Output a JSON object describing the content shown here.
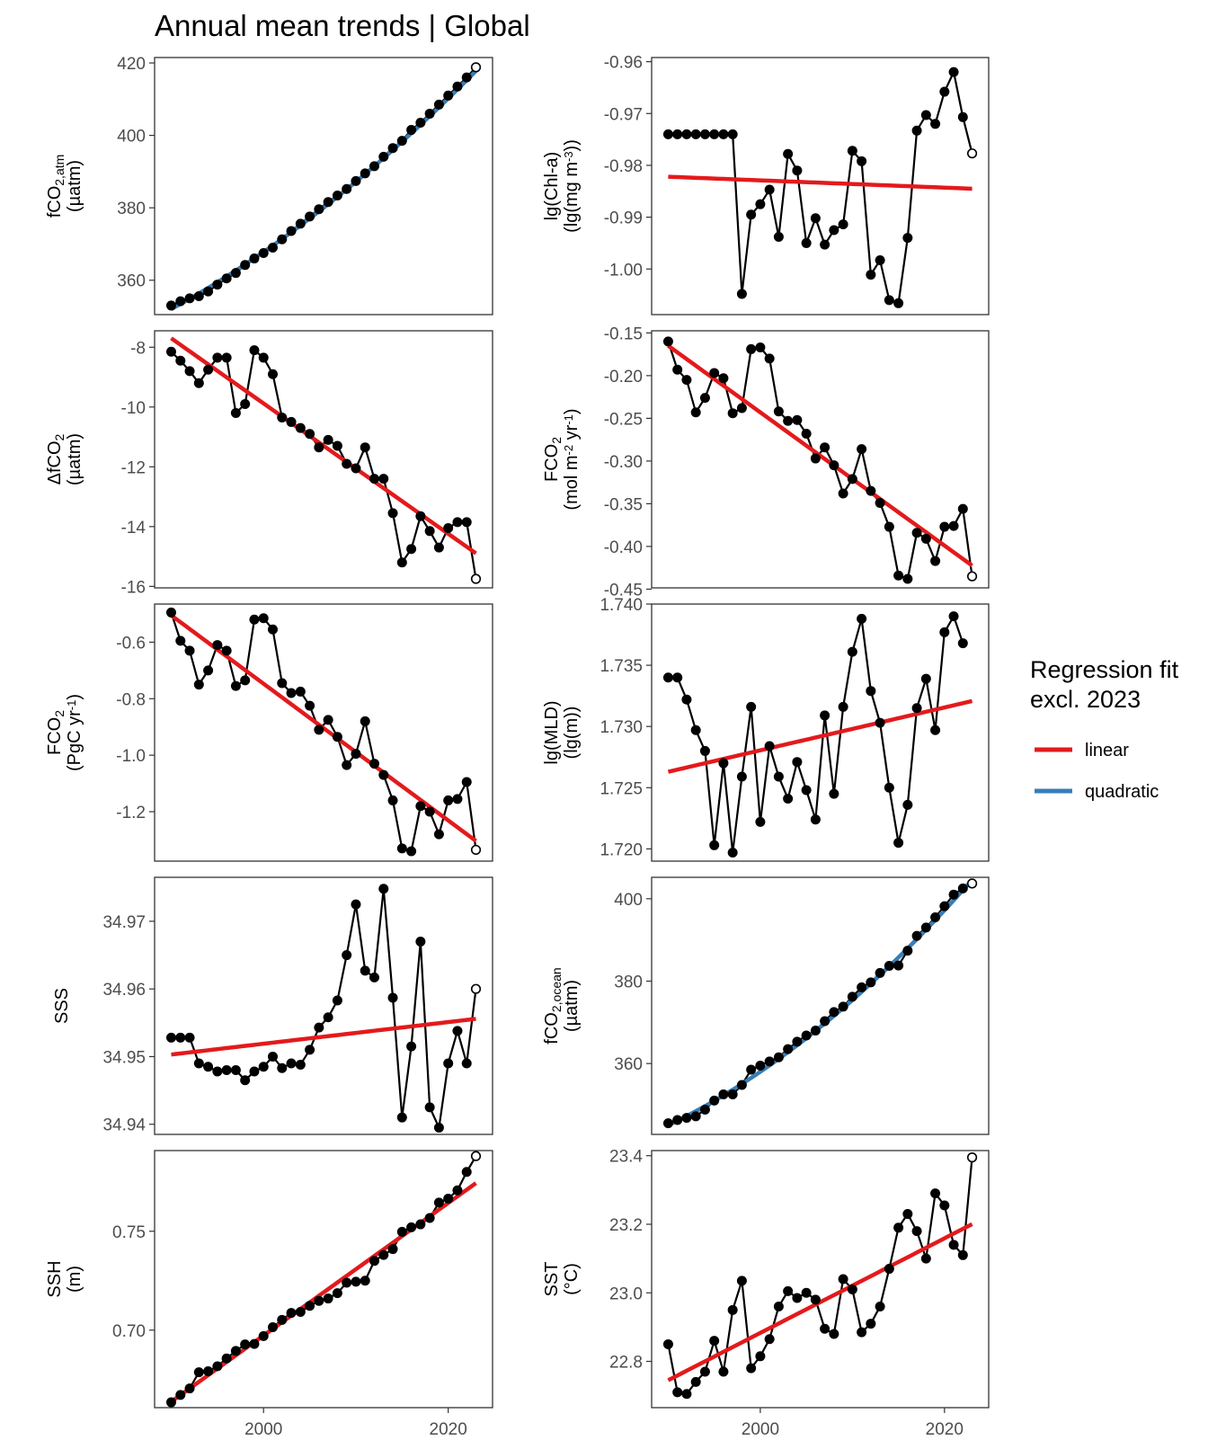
{
  "figure": {
    "title": "Annual mean trends | Global"
  },
  "colors": {
    "linear": "#e31a1c",
    "quadratic": "#377eb8",
    "points": "#000000",
    "frame": "#333333"
  },
  "legend": {
    "title_line1": "Regression fit",
    "title_line2": "excl. 2023",
    "items": [
      {
        "key": "linear",
        "label": "linear"
      },
      {
        "key": "quadratic",
        "label": "quadratic"
      }
    ]
  },
  "chart_data": [
    {
      "type": "line",
      "id": "fco2atm",
      "ylabel": [
        [
          {
            "t": "fCO"
          },
          {
            "t": "2,atm",
            "s": "sub"
          }
        ],
        [
          {
            "t": "(µatm)"
          }
        ]
      ],
      "xlim": [
        1988.2,
        2024.8
      ],
      "ylim": [
        350.5,
        421.5
      ],
      "yticks": [
        360,
        380,
        400,
        420
      ],
      "ytick_labels": [
        "360",
        "380",
        "400",
        "420"
      ],
      "xticks": [],
      "xtick_labels": [],
      "x": [
        1990,
        1991,
        1992,
        1993,
        1994,
        1995,
        1996,
        1997,
        1998,
        1999,
        2000,
        2001,
        2002,
        2003,
        2004,
        2005,
        2006,
        2007,
        2008,
        2009,
        2010,
        2011,
        2012,
        2013,
        2014,
        2015,
        2016,
        2017,
        2018,
        2019,
        2020,
        2021,
        2022,
        2023
      ],
      "values": [
        353.0,
        354.2,
        355.0,
        355.6,
        356.9,
        358.8,
        360.5,
        362.0,
        364.2,
        366.0,
        367.5,
        369.0,
        371.3,
        373.6,
        375.6,
        377.6,
        379.6,
        381.6,
        383.4,
        385.2,
        387.4,
        389.5,
        391.5,
        394.1,
        396.5,
        398.5,
        401.5,
        403.5,
        406.0,
        408.5,
        411.0,
        413.5,
        416.0,
        418.8
      ],
      "fits": {
        "quadratic": {
          "coef": [
            352.0,
            1.4,
            0.018
          ],
          "x0": 1990,
          "range": [
            1990,
            2023
          ]
        }
      }
    },
    {
      "type": "line",
      "id": "chla",
      "ylabel": [
        [
          {
            "t": "lg(Chl-a)"
          }
        ],
        [
          {
            "t": "(lg(mg m"
          },
          {
            "t": "-3",
            "s": "sup"
          },
          {
            "t": "))"
          }
        ]
      ],
      "xlim": [
        1988.2,
        2024.8
      ],
      "ylim": [
        -1.0088,
        -0.9592
      ],
      "yticks": [
        -1.0,
        -0.99,
        -0.98,
        -0.97,
        -0.96
      ],
      "ytick_labels": [
        "-1.00",
        "-0.99",
        "-0.98",
        "-0.97",
        "-0.96"
      ],
      "xticks": [],
      "xtick_labels": [],
      "x": [
        1990,
        1991,
        1992,
        1993,
        1994,
        1995,
        1996,
        1997,
        1998,
        1999,
        2000,
        2001,
        2002,
        2003,
        2004,
        2005,
        2006,
        2007,
        2008,
        2009,
        2010,
        2011,
        2012,
        2013,
        2014,
        2015,
        2016,
        2017,
        2018,
        2019,
        2020,
        2021,
        2022,
        2023
      ],
      "values": [
        -0.974,
        -0.974,
        -0.974,
        -0.974,
        -0.974,
        -0.974,
        -0.974,
        -0.974,
        -1.0048,
        -0.9895,
        -0.9875,
        -0.9847,
        -0.9938,
        -0.9778,
        -0.981,
        -0.995,
        -0.9902,
        -0.9953,
        -0.9925,
        -0.9914,
        -0.9772,
        -0.9792,
        -1.0011,
        -0.9983,
        -1.006,
        -1.0066,
        -0.994,
        -0.9733,
        -0.9703,
        -0.972,
        -0.9658,
        -0.962,
        -0.9707,
        -0.9777
      ],
      "fits": {
        "linear": {
          "coef": [
            -0.9822,
            -7e-05
          ],
          "x0": 1990,
          "range": [
            1990,
            2023
          ]
        }
      }
    },
    {
      "type": "line",
      "id": "dfco2",
      "ylabel": [
        [
          {
            "t": "ΔfCO"
          },
          {
            "t": "2",
            "s": "sub"
          }
        ],
        [
          {
            "t": "(µatm)"
          }
        ]
      ],
      "xlim": [
        1988.2,
        2024.8
      ],
      "ylim": [
        -16.05,
        -7.45
      ],
      "yticks": [
        -16,
        -14,
        -12,
        -10,
        -8
      ],
      "ytick_labels": [
        "-16",
        "-14",
        "-12",
        "-10",
        "-8"
      ],
      "xticks": [],
      "xtick_labels": [],
      "x": [
        1990,
        1991,
        1992,
        1993,
        1994,
        1995,
        1996,
        1997,
        1998,
        1999,
        2000,
        2001,
        2002,
        2003,
        2004,
        2005,
        2006,
        2007,
        2008,
        2009,
        2010,
        2011,
        2012,
        2013,
        2014,
        2015,
        2016,
        2017,
        2018,
        2019,
        2020,
        2021,
        2022,
        2023
      ],
      "values": [
        -8.15,
        -8.45,
        -8.8,
        -9.2,
        -8.75,
        -8.35,
        -8.35,
        -10.2,
        -9.9,
        -8.1,
        -8.35,
        -8.9,
        -10.35,
        -10.5,
        -10.7,
        -10.9,
        -11.35,
        -11.1,
        -11.3,
        -11.9,
        -12.05,
        -11.35,
        -12.4,
        -12.4,
        -13.55,
        -15.2,
        -14.75,
        -13.65,
        -14.15,
        -14.7,
        -14.05,
        -13.85,
        -13.85,
        -15.75
      ],
      "fits": {
        "linear": {
          "coef": [
            -7.7,
            -0.218
          ],
          "x0": 1990,
          "range": [
            1990,
            2023
          ]
        }
      }
    },
    {
      "type": "line",
      "id": "fco2flux_area",
      "ylabel": [
        [
          {
            "t": "FCO"
          },
          {
            "t": "2",
            "s": "sub"
          }
        ],
        [
          {
            "t": "(mol m"
          },
          {
            "t": "-2",
            "s": "sup"
          },
          {
            "t": " yr"
          },
          {
            "t": "-1",
            "s": "sup"
          },
          {
            "t": ")"
          }
        ]
      ],
      "xlim": [
        1988.2,
        2024.8
      ],
      "ylim": [
        -0.4485,
        -0.1475
      ],
      "yticks": [
        -0.45,
        -0.4,
        -0.35,
        -0.3,
        -0.25,
        -0.2,
        -0.15
      ],
      "ytick_labels": [
        "-0.45",
        "-0.40",
        "-0.35",
        "-0.30",
        "-0.25",
        "-0.20",
        "-0.15"
      ],
      "xticks": [],
      "xtick_labels": [],
      "x": [
        1990,
        1991,
        1992,
        1993,
        1994,
        1995,
        1996,
        1997,
        1998,
        1999,
        2000,
        2001,
        2002,
        2003,
        2004,
        2005,
        2006,
        2007,
        2008,
        2009,
        2010,
        2011,
        2012,
        2013,
        2014,
        2015,
        2016,
        2017,
        2018,
        2019,
        2020,
        2021,
        2022,
        2023
      ],
      "values": [
        -0.16,
        -0.193,
        -0.205,
        -0.243,
        -0.226,
        -0.197,
        -0.203,
        -0.244,
        -0.238,
        -0.169,
        -0.167,
        -0.18,
        -0.242,
        -0.253,
        -0.252,
        -0.268,
        -0.297,
        -0.284,
        -0.305,
        -0.338,
        -0.321,
        -0.286,
        -0.335,
        -0.349,
        -0.377,
        -0.434,
        -0.438,
        -0.384,
        -0.391,
        -0.417,
        -0.377,
        -0.376,
        -0.356,
        -0.435
      ],
      "fits": {
        "linear": {
          "coef": [
            -0.165,
            -0.0078
          ],
          "x0": 1990,
          "range": [
            1990,
            2023
          ]
        }
      }
    },
    {
      "type": "line",
      "id": "fco2flux_global",
      "ylabel": [
        [
          {
            "t": "FCO"
          },
          {
            "t": "2",
            "s": "sub"
          }
        ],
        [
          {
            "t": "(PgC yr"
          },
          {
            "t": "-1",
            "s": "sup"
          },
          {
            "t": ")"
          }
        ]
      ],
      "xlim": [
        1988.2,
        2024.8
      ],
      "ylim": [
        -1.375,
        -0.465
      ],
      "yticks": [
        -1.2,
        -1.0,
        -0.8,
        -0.6
      ],
      "ytick_labels": [
        "-1.2",
        "-1.0",
        "-0.8",
        "-0.6"
      ],
      "xticks": [],
      "xtick_labels": [],
      "x": [
        1990,
        1991,
        1992,
        1993,
        1994,
        1995,
        1996,
        1997,
        1998,
        1999,
        2000,
        2001,
        2002,
        2003,
        2004,
        2005,
        2006,
        2007,
        2008,
        2009,
        2010,
        2011,
        2012,
        2013,
        2014,
        2015,
        2016,
        2017,
        2018,
        2019,
        2020,
        2021,
        2022,
        2023
      ],
      "values": [
        -0.495,
        -0.595,
        -0.63,
        -0.75,
        -0.7,
        -0.61,
        -0.63,
        -0.755,
        -0.735,
        -0.52,
        -0.515,
        -0.555,
        -0.745,
        -0.78,
        -0.775,
        -0.825,
        -0.91,
        -0.875,
        -0.935,
        -1.035,
        -0.995,
        -0.88,
        -1.03,
        -1.07,
        -1.16,
        -1.33,
        -1.34,
        -1.18,
        -1.2,
        -1.28,
        -1.16,
        -1.155,
        -1.095,
        -1.335
      ],
      "fits": {
        "linear": {
          "coef": [
            -0.505,
            -0.0242
          ],
          "x0": 1990,
          "range": [
            1990,
            2023
          ]
        }
      }
    },
    {
      "type": "line",
      "id": "mld",
      "ylabel": [
        [
          {
            "t": "lg(MLD)"
          }
        ],
        [
          {
            "t": "(lg(m))"
          }
        ]
      ],
      "xlim": [
        1988.2,
        2024.8
      ],
      "ylim": [
        1.719,
        1.74
      ],
      "yticks": [
        1.72,
        1.725,
        1.73,
        1.735,
        1.74
      ],
      "ytick_labels": [
        "1.720",
        "1.725",
        "1.730",
        "1.735",
        "1.740"
      ],
      "xticks": [],
      "xtick_labels": [],
      "x": [
        1990,
        1991,
        1992,
        1993,
        1994,
        1995,
        1996,
        1997,
        1998,
        1999,
        2000,
        2001,
        2002,
        2003,
        2004,
        2005,
        2006,
        2007,
        2008,
        2009,
        2010,
        2011,
        2012,
        2013,
        2014,
        2015,
        2016,
        2017,
        2018,
        2019,
        2020,
        2021,
        2022
      ],
      "values": [
        1.734,
        1.734,
        1.7322,
        1.7297,
        1.728,
        1.7203,
        1.727,
        1.7197,
        1.7259,
        1.7316,
        1.7222,
        1.7284,
        1.7259,
        1.7241,
        1.7271,
        1.7248,
        1.7224,
        1.7309,
        1.7245,
        1.7316,
        1.7361,
        1.7388,
        1.7329,
        1.7303,
        1.725,
        1.7205,
        1.7236,
        1.7315,
        1.7339,
        1.7297,
        1.7377,
        1.739,
        1.7368
      ],
      "fits": {
        "linear": {
          "coef": [
            1.7263,
            0.000175
          ],
          "x0": 1990,
          "range": [
            1990,
            2023
          ]
        }
      }
    },
    {
      "type": "line",
      "id": "sss",
      "ylabel": [
        [
          {
            "t": "SSS"
          }
        ]
      ],
      "xlim": [
        1988.2,
        2024.8
      ],
      "ylim": [
        34.9385,
        34.9765
      ],
      "yticks": [
        34.94,
        34.95,
        34.96,
        34.97
      ],
      "ytick_labels": [
        "34.94",
        "34.95",
        "34.96",
        "34.97"
      ],
      "xticks": [],
      "xtick_labels": [],
      "x": [
        1990,
        1991,
        1992,
        1993,
        1994,
        1995,
        1996,
        1997,
        1998,
        1999,
        2000,
        2001,
        2002,
        2003,
        2004,
        2005,
        2006,
        2007,
        2008,
        2009,
        2010,
        2011,
        2012,
        2013,
        2014,
        2015,
        2016,
        2017,
        2018,
        2019,
        2020,
        2021,
        2022,
        2023
      ],
      "values": [
        34.9528,
        34.9528,
        34.9528,
        34.949,
        34.9485,
        34.9478,
        34.948,
        34.948,
        34.9465,
        34.9478,
        34.9485,
        34.95,
        34.9483,
        34.949,
        34.9488,
        34.951,
        34.9543,
        34.9558,
        34.9583,
        34.965,
        34.9725,
        34.9627,
        34.9617,
        34.9748,
        34.9587,
        34.941,
        34.9515,
        34.967,
        34.9425,
        34.9395,
        34.949,
        34.9538,
        34.949,
        34.96
      ],
      "fits": {
        "linear": {
          "coef": [
            34.9503,
            0.00016
          ],
          "x0": 1990,
          "range": [
            1990,
            2023
          ]
        }
      }
    },
    {
      "type": "line",
      "id": "fco2ocean",
      "ylabel": [
        [
          {
            "t": "fCO"
          },
          {
            "t": "2,ocean",
            "s": "sub"
          }
        ],
        [
          {
            "t": "(µatm)"
          }
        ]
      ],
      "xlim": [
        1988.2,
        2024.8
      ],
      "ylim": [
        342.8,
        405.2
      ],
      "yticks": [
        360,
        380,
        400
      ],
      "ytick_labels": [
        "360",
        "380",
        "400"
      ],
      "xticks": [],
      "xtick_labels": [],
      "x": [
        1990,
        1991,
        1992,
        1993,
        1994,
        1995,
        1996,
        1997,
        1998,
        1999,
        2000,
        2001,
        2002,
        2003,
        2004,
        2005,
        2006,
        2007,
        2008,
        2009,
        2010,
        2011,
        2012,
        2013,
        2014,
        2015,
        2016,
        2017,
        2018,
        2019,
        2020,
        2021,
        2022,
        2023
      ],
      "values": [
        345.5,
        346.3,
        346.8,
        347.2,
        348.8,
        351.0,
        352.5,
        352.5,
        354.8,
        358.5,
        359.5,
        360.5,
        361.5,
        363.5,
        365.3,
        366.8,
        368.0,
        370.3,
        372.5,
        373.8,
        376.2,
        378.5,
        379.7,
        382.0,
        383.7,
        383.8,
        387.4,
        391.0,
        393.0,
        395.5,
        398.2,
        401.0,
        402.5,
        403.7
      ],
      "fits": {
        "quadratic": {
          "coef": [
            345.0,
            1.08,
            0.022
          ],
          "x0": 1990,
          "range": [
            1990,
            2023
          ]
        }
      }
    },
    {
      "type": "line",
      "id": "ssh",
      "ylabel": [
        [
          {
            "t": "SSH"
          }
        ],
        [
          {
            "t": "(m)"
          }
        ]
      ],
      "xlim": [
        1988.2,
        2024.8
      ],
      "ylim": [
        0.6608,
        0.7908
      ],
      "yticks": [
        0.7,
        0.75
      ],
      "ytick_labels": [
        "0.70",
        "0.75"
      ],
      "xticks": [
        2000,
        2020
      ],
      "xtick_labels": [
        "2000",
        "2020"
      ],
      "x": [
        1990,
        1991,
        1992,
        1993,
        1994,
        1995,
        1996,
        1997,
        1998,
        1999,
        2000,
        2001,
        2002,
        2003,
        2004,
        2005,
        2006,
        2007,
        2008,
        2009,
        2010,
        2011,
        2012,
        2013,
        2014,
        2015,
        2016,
        2017,
        2018,
        2019,
        2020,
        2021,
        2022,
        2023
      ],
      "values": [
        0.6635,
        0.6672,
        0.6705,
        0.6787,
        0.6792,
        0.6817,
        0.6857,
        0.6895,
        0.6928,
        0.693,
        0.697,
        0.7015,
        0.7052,
        0.7087,
        0.7092,
        0.7123,
        0.7148,
        0.716,
        0.7187,
        0.724,
        0.7245,
        0.725,
        0.735,
        0.738,
        0.741,
        0.7497,
        0.752,
        0.7535,
        0.7567,
        0.7645,
        0.7665,
        0.7707,
        0.78,
        0.788
      ],
      "fits": {
        "linear": {
          "coef": [
            0.6638,
            0.00335
          ],
          "x0": 1990,
          "range": [
            1990,
            2023
          ]
        }
      }
    },
    {
      "type": "line",
      "id": "sst",
      "ylabel": [
        [
          {
            "t": "SST"
          }
        ],
        [
          {
            "t": "(°C)"
          }
        ]
      ],
      "xlim": [
        1988.2,
        2024.8
      ],
      "ylim": [
        22.665,
        23.415
      ],
      "yticks": [
        22.8,
        23.0,
        23.2,
        23.4
      ],
      "ytick_labels": [
        "22.8",
        "23.0",
        "23.2",
        "23.4"
      ],
      "xticks": [
        2000,
        2020
      ],
      "xtick_labels": [
        "2000",
        "2020"
      ],
      "x": [
        1990,
        1991,
        1992,
        1993,
        1994,
        1995,
        1996,
        1997,
        1998,
        1999,
        2000,
        2001,
        2002,
        2003,
        2004,
        2005,
        2006,
        2007,
        2008,
        2009,
        2010,
        2011,
        2012,
        2013,
        2014,
        2015,
        2016,
        2017,
        2018,
        2019,
        2020,
        2021,
        2022,
        2023
      ],
      "values": [
        22.85,
        22.71,
        22.705,
        22.74,
        22.77,
        22.86,
        22.77,
        22.95,
        23.035,
        22.78,
        22.815,
        22.865,
        22.96,
        23.005,
        22.985,
        23.0,
        22.98,
        22.895,
        22.88,
        23.04,
        23.01,
        22.885,
        22.91,
        22.96,
        23.07,
        23.19,
        23.23,
        23.18,
        23.1,
        23.29,
        23.255,
        23.14,
        23.11,
        23.395
      ],
      "fits": {
        "linear": {
          "coef": [
            22.745,
            0.0138
          ],
          "x0": 1990,
          "range": [
            1990,
            2023
          ]
        }
      }
    }
  ]
}
